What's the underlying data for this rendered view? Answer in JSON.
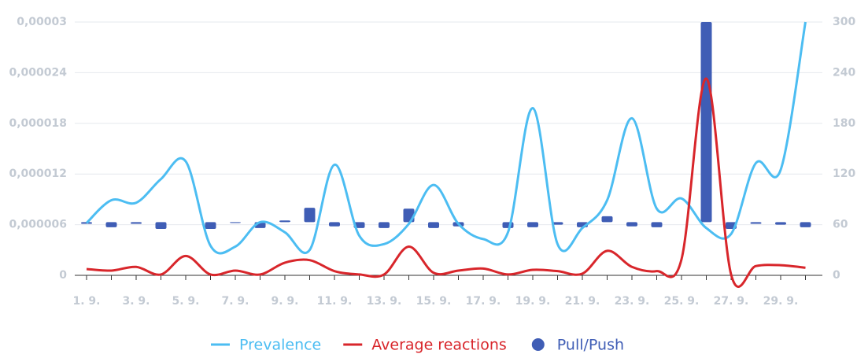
{
  "chart_data": {
    "type": "combo",
    "categories": [
      "1. 9.",
      null,
      "3. 9.",
      null,
      "5. 9.",
      null,
      "7. 9.",
      null,
      "9. 9.",
      null,
      "11. 9.",
      null,
      "13. 9.",
      null,
      "15. 9.",
      null,
      "17. 9.",
      null,
      "19. 9.",
      null,
      "21. 9.",
      null,
      "23. 9.",
      null,
      "25. 9.",
      null,
      "27. 9.",
      null,
      "29. 9.",
      null
    ],
    "ylim": [
      0,
      3e-05
    ],
    "yticks": [
      0,
      {
        "value": 6e-06,
        "label": "0,000006"
      },
      {
        "value": 1.2e-05,
        "label": "0,000012"
      },
      {
        "value": 1.8e-05,
        "label": "0,000018"
      },
      {
        "value": 2.4e-05,
        "label": "0,000024"
      },
      {
        "value": 3e-05,
        "label": "0,00003"
      }
    ],
    "y2lim": [
      0,
      300
    ],
    "y2ticks": [
      0,
      60,
      120,
      180,
      240,
      300
    ],
    "grid": true,
    "legend": "bottom",
    "series": [
      {
        "name": "Prevalence",
        "type": "line",
        "color": "#4cbdf2",
        "values": [
          6.2e-06,
          8.9e-06,
          8.6e-06,
          1.14e-05,
          1.35e-05,
          3.5e-06,
          3.4e-06,
          6.3e-06,
          5.1e-06,
          3e-06,
          1.31e-05,
          4.7e-06,
          3.7e-06,
          6.1e-06,
          1.07e-05,
          6.1e-06,
          4.3e-06,
          5.1e-06,
          1.98e-05,
          3.7e-06,
          5.6e-06,
          8.9e-06,
          1.86e-05,
          7.9e-06,
          9.1e-06,
          5.6e-06,
          4.9e-06,
          1.33e-05,
          1.25e-05,
          3e-05
        ]
      },
      {
        "name": "Average reactions",
        "type": "line",
        "axis": "y2",
        "color": "#d8262b",
        "values": [
          7.5,
          5.6,
          10,
          1,
          23,
          1,
          5.6,
          1,
          15,
          18,
          5,
          1,
          1,
          34,
          3,
          5.6,
          8,
          1,
          6.5,
          5,
          2,
          29,
          10,
          5,
          19,
          233,
          1,
          11,
          12,
          9
        ]
      },
      {
        "name": "Pull/Push",
        "type": "range-bar",
        "axis": "y2",
        "color": "#3f5db5",
        "values": [
          [
            61,
            63
          ],
          [
            57,
            63
          ],
          [
            61,
            63
          ],
          [
            55,
            63
          ],
          null,
          [
            55,
            63
          ],
          [
            62,
            63
          ],
          [
            56,
            63
          ],
          [
            63,
            65
          ],
          [
            63,
            80
          ],
          [
            58,
            63
          ],
          [
            56,
            63
          ],
          [
            56,
            63
          ],
          [
            63,
            79
          ],
          [
            56,
            63
          ],
          [
            58,
            63
          ],
          null,
          [
            56,
            63
          ],
          [
            57,
            63
          ],
          [
            60,
            63
          ],
          [
            57,
            63
          ],
          [
            63,
            70
          ],
          [
            58,
            63
          ],
          [
            57,
            63
          ],
          null,
          [
            63,
            300
          ],
          [
            55,
            63
          ],
          [
            61,
            63
          ],
          [
            60,
            63
          ],
          [
            57,
            63
          ]
        ]
      }
    ]
  }
}
